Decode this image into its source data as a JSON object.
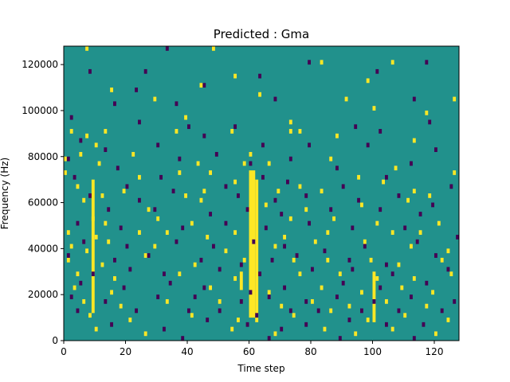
{
  "chart_data": {
    "type": "heatmap",
    "title": "Predicted : Gma",
    "xlabel": "Time step",
    "ylabel": "Frequency (Hz)",
    "xlim": [
      0,
      128
    ],
    "ylim": [
      0,
      128000
    ],
    "x_ticks": [
      0,
      20,
      40,
      60,
      80,
      100,
      120
    ],
    "y_ticks": [
      0,
      20000,
      40000,
      60000,
      80000,
      100000,
      120000
    ],
    "x_tick_labels": [
      "0",
      "20",
      "40",
      "60",
      "80",
      "100",
      "120"
    ],
    "y_tick_labels": [
      "0",
      "20000",
      "40000",
      "60000",
      "80000",
      "100000",
      "120000"
    ],
    "grid": false,
    "legend": "none",
    "colors": {
      "background": "#21918c",
      "high": "#fde725",
      "low": "#440154"
    },
    "bin_size": {
      "time_steps": 1,
      "frequency_hz": 2000
    },
    "high_vertical_bands": [
      {
        "x": [
          9,
          10
        ],
        "y": [
          12000,
          70000
        ]
      },
      {
        "x": [
          60,
          62
        ],
        "y": [
          10000,
          74000
        ]
      },
      {
        "x": [
          62,
          63
        ],
        "y": [
          8000,
          70000
        ]
      },
      {
        "x": [
          57,
          58
        ],
        "y": [
          22000,
          30000
        ]
      },
      {
        "x": [
          100,
          101
        ],
        "y": [
          8000,
          30000
        ]
      }
    ],
    "high_cells": [
      [
        7,
        126000
      ],
      [
        48,
        126000
      ],
      [
        83,
        120000
      ],
      [
        106,
        120000
      ],
      [
        2,
        90000
      ],
      [
        7,
        88000
      ],
      [
        10,
        84000
      ],
      [
        13,
        90000
      ],
      [
        36,
        90000
      ],
      [
        54,
        90000
      ],
      [
        73,
        90000
      ],
      [
        76,
        90000
      ],
      [
        88,
        88000
      ],
      [
        113,
        86000
      ],
      [
        0,
        78000
      ],
      [
        5,
        80000
      ],
      [
        11,
        76000
      ],
      [
        22,
        80000
      ],
      [
        43,
        76000
      ],
      [
        60,
        80000
      ],
      [
        66,
        76000
      ],
      [
        86,
        78000
      ],
      [
        107,
        74000
      ],
      [
        0,
        72000
      ],
      [
        24,
        70000
      ],
      [
        37,
        72000
      ],
      [
        47,
        72000
      ],
      [
        58,
        76000
      ],
      [
        95,
        70000
      ],
      [
        103,
        68000
      ],
      [
        126,
        72000
      ],
      [
        4,
        66000
      ],
      [
        12,
        62000
      ],
      [
        19,
        64000
      ],
      [
        39,
        62000
      ],
      [
        45,
        64000
      ],
      [
        55,
        68000
      ],
      [
        69,
        64000
      ],
      [
        76,
        66000
      ],
      [
        83,
        64000
      ],
      [
        113,
        64000
      ],
      [
        118,
        62000
      ],
      [
        6,
        60000
      ],
      [
        27,
        56000
      ],
      [
        44,
        60000
      ],
      [
        65,
        58000
      ],
      [
        78,
        56000
      ],
      [
        96,
        58000
      ],
      [
        111,
        60000
      ],
      [
        9,
        52000
      ],
      [
        13,
        50000
      ],
      [
        30,
        52000
      ],
      [
        41,
        50000
      ],
      [
        73,
        52000
      ],
      [
        87,
        52000
      ],
      [
        101,
        50000
      ],
      [
        121,
        50000
      ],
      [
        1,
        46000
      ],
      [
        10,
        44000
      ],
      [
        24,
        46000
      ],
      [
        33,
        46000
      ],
      [
        46,
        44000
      ],
      [
        55,
        46000
      ],
      [
        71,
        44000
      ],
      [
        85,
        46000
      ],
      [
        106,
        46000
      ],
      [
        115,
        46000
      ],
      [
        2,
        40000
      ],
      [
        7,
        38000
      ],
      [
        14,
        42000
      ],
      [
        29,
        40000
      ],
      [
        52,
        38000
      ],
      [
        68,
        40000
      ],
      [
        81,
        42000
      ],
      [
        97,
        42000
      ],
      [
        112,
        40000
      ],
      [
        124,
        38000
      ],
      [
        1,
        34000
      ],
      [
        12,
        32000
      ],
      [
        26,
        36000
      ],
      [
        42,
        32000
      ],
      [
        58,
        34000
      ],
      [
        74,
        34000
      ],
      [
        85,
        34000
      ],
      [
        99,
        34000
      ],
      [
        108,
        32000
      ],
      [
        122,
        34000
      ],
      [
        4,
        28000
      ],
      [
        16,
        26000
      ],
      [
        37,
        28000
      ],
      [
        55,
        26000
      ],
      [
        76,
        28000
      ],
      [
        89,
        28000
      ],
      [
        101,
        26000
      ],
      [
        113,
        26000
      ],
      [
        125,
        28000
      ],
      [
        3,
        22000
      ],
      [
        15,
        20000
      ],
      [
        47,
        22000
      ],
      [
        66,
        20000
      ],
      [
        83,
        22000
      ],
      [
        96,
        20000
      ],
      [
        109,
        22000
      ],
      [
        119,
        20000
      ],
      [
        6,
        16000
      ],
      [
        18,
        14000
      ],
      [
        33,
        16000
      ],
      [
        50,
        16000
      ],
      [
        70,
        14000
      ],
      [
        80,
        16000
      ],
      [
        92,
        14000
      ],
      [
        104,
        16000
      ],
      [
        117,
        14000
      ],
      [
        8,
        10000
      ],
      [
        21,
        8000
      ],
      [
        41,
        10000
      ],
      [
        56,
        8000
      ],
      [
        74,
        10000
      ],
      [
        86,
        12000
      ],
      [
        98,
        8000
      ],
      [
        110,
        10000
      ],
      [
        124,
        8000
      ],
      [
        10,
        4000
      ],
      [
        26,
        2000
      ],
      [
        54,
        4000
      ],
      [
        68,
        2000
      ],
      [
        84,
        4000
      ],
      [
        94,
        2000
      ],
      [
        106,
        4000
      ],
      [
        120,
        2000
      ],
      [
        15,
        108000
      ],
      [
        29,
        104000
      ],
      [
        44,
        110000
      ],
      [
        63,
        106000
      ],
      [
        91,
        104000
      ],
      [
        100,
        100000
      ],
      [
        117,
        98000
      ],
      [
        126,
        104000
      ],
      [
        39,
        96000
      ],
      [
        73,
        94000
      ],
      [
        55,
        114000
      ],
      [
        98,
        112000
      ]
    ],
    "low_cells": [
      [
        33,
        126000
      ],
      [
        79,
        120000
      ],
      [
        8,
        116000
      ],
      [
        117,
        120000
      ],
      [
        101,
        116000
      ],
      [
        26,
        116000
      ],
      [
        63,
        114000
      ],
      [
        23,
        108000
      ],
      [
        45,
        110000
      ],
      [
        113,
        104000
      ],
      [
        16,
        102000
      ],
      [
        36,
        102000
      ],
      [
        68,
        104000
      ],
      [
        2,
        96000
      ],
      [
        24,
        94000
      ],
      [
        55,
        92000
      ],
      [
        40,
        92000
      ],
      [
        94,
        92000
      ],
      [
        118,
        94000
      ],
      [
        5,
        86000
      ],
      [
        13,
        82000
      ],
      [
        30,
        84000
      ],
      [
        45,
        88000
      ],
      [
        64,
        84000
      ],
      [
        79,
        84000
      ],
      [
        98,
        84000
      ],
      [
        102,
        90000
      ],
      [
        120,
        82000
      ],
      [
        1,
        78000
      ],
      [
        17,
        74000
      ],
      [
        37,
        78000
      ],
      [
        49,
        80000
      ],
      [
        60,
        76000
      ],
      [
        73,
        78000
      ],
      [
        88,
        74000
      ],
      [
        112,
        76000
      ],
      [
        3,
        70000
      ],
      [
        20,
        66000
      ],
      [
        31,
        70000
      ],
      [
        52,
        66000
      ],
      [
        64,
        70000
      ],
      [
        72,
        68000
      ],
      [
        90,
        66000
      ],
      [
        104,
        70000
      ],
      [
        125,
        66000
      ],
      [
        8,
        62000
      ],
      [
        24,
        60000
      ],
      [
        35,
        64000
      ],
      [
        56,
        62000
      ],
      [
        68,
        60000
      ],
      [
        78,
        62000
      ],
      [
        95,
        60000
      ],
      [
        108,
        62000
      ],
      [
        119,
        58000
      ],
      [
        14,
        56000
      ],
      [
        29,
        56000
      ],
      [
        47,
        54000
      ],
      [
        59,
        56000
      ],
      [
        70,
        54000
      ],
      [
        86,
        56000
      ],
      [
        102,
        56000
      ],
      [
        115,
        54000
      ],
      [
        4,
        50000
      ],
      [
        18,
        48000
      ],
      [
        38,
        48000
      ],
      [
        52,
        50000
      ],
      [
        65,
        48000
      ],
      [
        79,
        50000
      ],
      [
        93,
        48000
      ],
      [
        110,
        48000
      ],
      [
        127,
        44000
      ],
      [
        6,
        42000
      ],
      [
        20,
        40000
      ],
      [
        36,
        42000
      ],
      [
        48,
        40000
      ],
      [
        61,
        42000
      ],
      [
        71,
        40000
      ],
      [
        84,
        38000
      ],
      [
        97,
        40000
      ],
      [
        114,
        42000
      ],
      [
        1,
        36000
      ],
      [
        16,
        34000
      ],
      [
        27,
        36000
      ],
      [
        44,
        34000
      ],
      [
        57,
        32000
      ],
      [
        67,
        34000
      ],
      [
        75,
        36000
      ],
      [
        92,
        34000
      ],
      [
        104,
        32000
      ],
      [
        120,
        36000
      ],
      [
        9,
        28000
      ],
      [
        21,
        30000
      ],
      [
        32,
        28000
      ],
      [
        50,
        30000
      ],
      [
        63,
        28000
      ],
      [
        80,
        30000
      ],
      [
        93,
        30000
      ],
      [
        106,
        28000
      ],
      [
        124,
        30000
      ],
      [
        5,
        24000
      ],
      [
        19,
        22000
      ],
      [
        34,
        24000
      ],
      [
        45,
        22000
      ],
      [
        60,
        20000
      ],
      [
        71,
        22000
      ],
      [
        90,
        24000
      ],
      [
        102,
        22000
      ],
      [
        117,
        24000
      ],
      [
        2,
        18000
      ],
      [
        13,
        16000
      ],
      [
        30,
        18000
      ],
      [
        42,
        18000
      ],
      [
        57,
        16000
      ],
      [
        66,
        18000
      ],
      [
        78,
        16000
      ],
      [
        88,
        18000
      ],
      [
        100,
        16000
      ],
      [
        112,
        18000
      ],
      [
        126,
        16000
      ],
      [
        4,
        12000
      ],
      [
        23,
        12000
      ],
      [
        40,
        12000
      ],
      [
        50,
        12000
      ],
      [
        62,
        10000
      ],
      [
        73,
        12000
      ],
      [
        82,
        12000
      ],
      [
        96,
        12000
      ],
      [
        108,
        12000
      ],
      [
        122,
        12000
      ],
      [
        15,
        6000
      ],
      [
        32,
        4000
      ],
      [
        46,
        8000
      ],
      [
        59,
        6000
      ],
      [
        70,
        4000
      ],
      [
        78,
        6000
      ],
      [
        92,
        8000
      ],
      [
        104,
        6000
      ],
      [
        116,
        6000
      ],
      [
        38,
        0
      ],
      [
        66,
        0
      ],
      [
        89,
        0
      ],
      [
        113,
        0
      ]
    ]
  }
}
